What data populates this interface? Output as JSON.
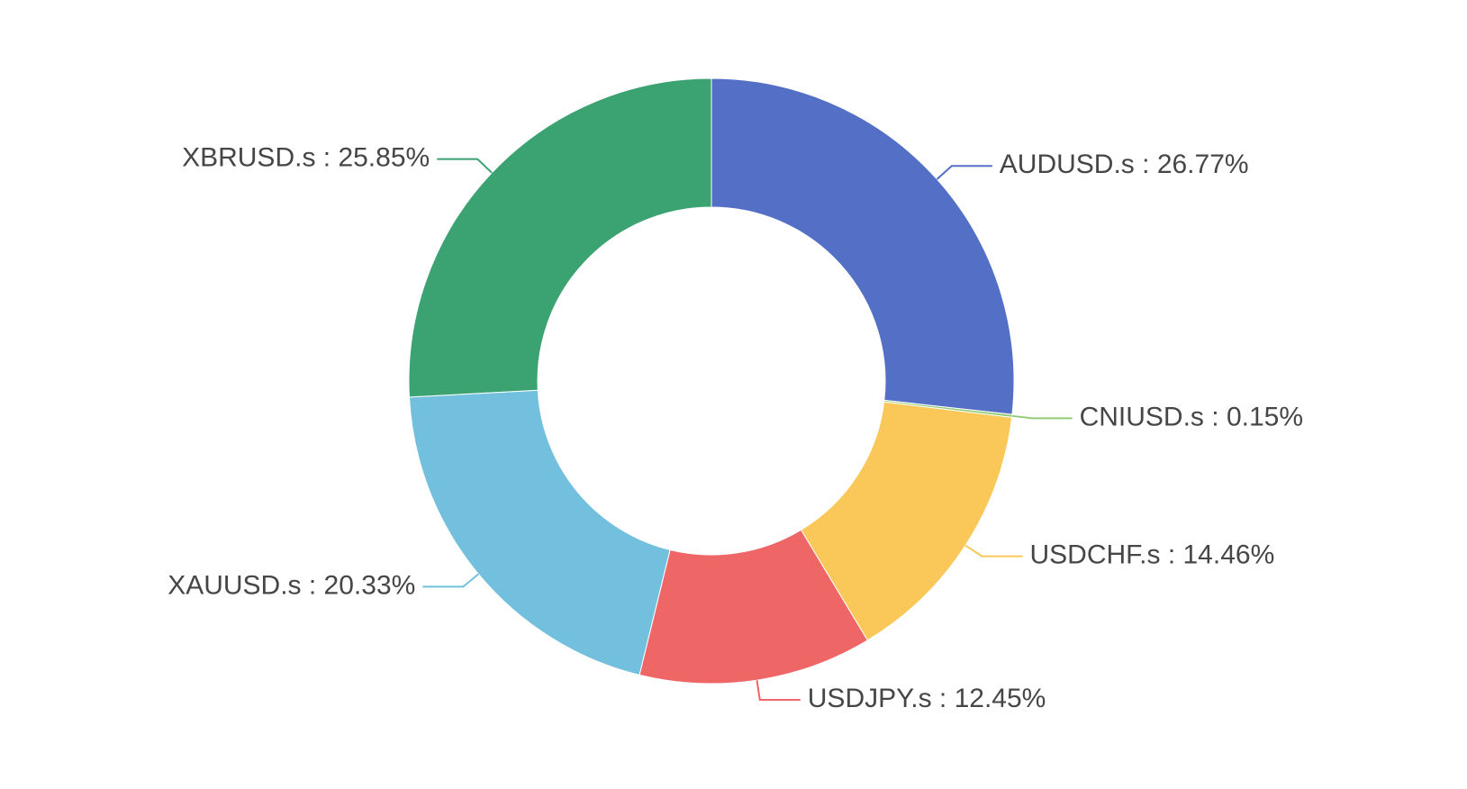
{
  "chart_data": {
    "type": "donut",
    "value_labels": [
      "AUDUSD.s : 26.77%",
      "CNIUSD.s : 0.15%",
      "USDCHF.s : 14.46%",
      "USDJPY.s : 12.45%",
      "XAUUSD.s : 20.33%",
      "XBRUSD.s : 25.85%"
    ],
    "values": [
      26.77,
      0.15,
      14.46,
      12.45,
      20.33,
      25.85
    ],
    "colors": [
      "#5470c6",
      "#91cc75",
      "#fac858",
      "#ee6666",
      "#73c0de",
      "#3ba272"
    ]
  }
}
